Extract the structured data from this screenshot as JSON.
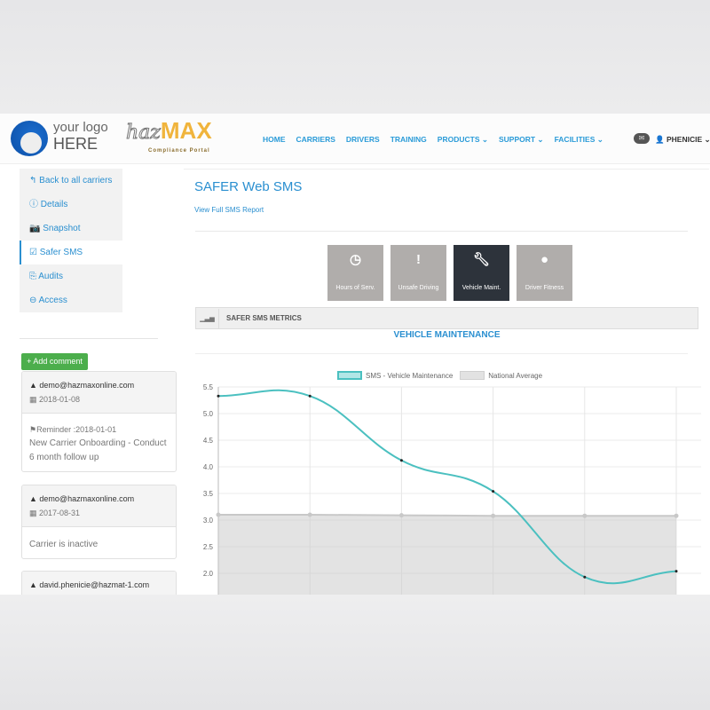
{
  "header": {
    "logo_line1": "your logo",
    "logo_line2": "HERE",
    "brand_haz": "haz",
    "brand_max": "MAX",
    "brand_sub": "Compliance Portal",
    "nav": [
      {
        "label": "HOME"
      },
      {
        "label": "CARRIERS"
      },
      {
        "label": "DRIVERS"
      },
      {
        "label": "TRAINING"
      },
      {
        "label": "PRODUCTS ⌄"
      },
      {
        "label": "SUPPORT ⌄"
      },
      {
        "label": "FACILITIES ⌄"
      }
    ],
    "user": "PHENICIE"
  },
  "sidebar": {
    "items": [
      {
        "icon": "↰",
        "label": "Back to all carriers"
      },
      {
        "icon": "ⓘ",
        "label": "Details"
      },
      {
        "icon": "📷",
        "label": "Snapshot"
      },
      {
        "icon": "☑",
        "label": "Safer SMS"
      },
      {
        "icon": "⎘",
        "label": "Audits"
      },
      {
        "icon": "⊖",
        "label": "Access"
      }
    ]
  },
  "comments": {
    "add_label": "+ Add comment",
    "items": [
      {
        "user": "demo@hazmaxonline.com",
        "date": "2018-01-08",
        "reminder": "Reminder :2018-01-01",
        "text": "New Carrier Onboarding - Conduct 6 month follow up"
      },
      {
        "user": "demo@hazmaxonline.com",
        "date": "2017-08-31",
        "text": "Carrier is inactive"
      },
      {
        "user": "david.phenicie@hazmat-1.com"
      }
    ]
  },
  "main": {
    "title": "SAFER Web SMS",
    "link": "View Full SMS Report",
    "tiles": [
      {
        "label": "Hours of Serv.",
        "icon": "clock"
      },
      {
        "label": "Unsafe Driving",
        "icon": "exclamation"
      },
      {
        "label": "Vehicle Maint.",
        "icon": "wrench"
      },
      {
        "label": "Driver Fitness",
        "icon": "user"
      }
    ],
    "metrics_title": "SAFER SMS METRICS",
    "section": "VEHICLE MAINTENANCE"
  },
  "chart_data": {
    "type": "line",
    "x": [
      1,
      2,
      3,
      4,
      5,
      6
    ],
    "series": [
      {
        "name": "SMS - Vehicle Maintenance",
        "values": [
          5.33,
          5.33,
          4.12,
          3.54,
          1.93,
          2.04
        ],
        "color": "#4bc0c0"
      },
      {
        "name": "National Average",
        "values": [
          3.1,
          3.1,
          3.09,
          3.08,
          3.08,
          3.08
        ],
        "color": "#c8c8c8",
        "fill": true
      }
    ],
    "yticks": [
      "5.5",
      "5.0",
      "4.5",
      "4.0",
      "3.5",
      "3.0",
      "2.5",
      "2.0"
    ],
    "ylim": [
      1.5,
      5.5
    ],
    "grid": true,
    "legend": "top"
  }
}
